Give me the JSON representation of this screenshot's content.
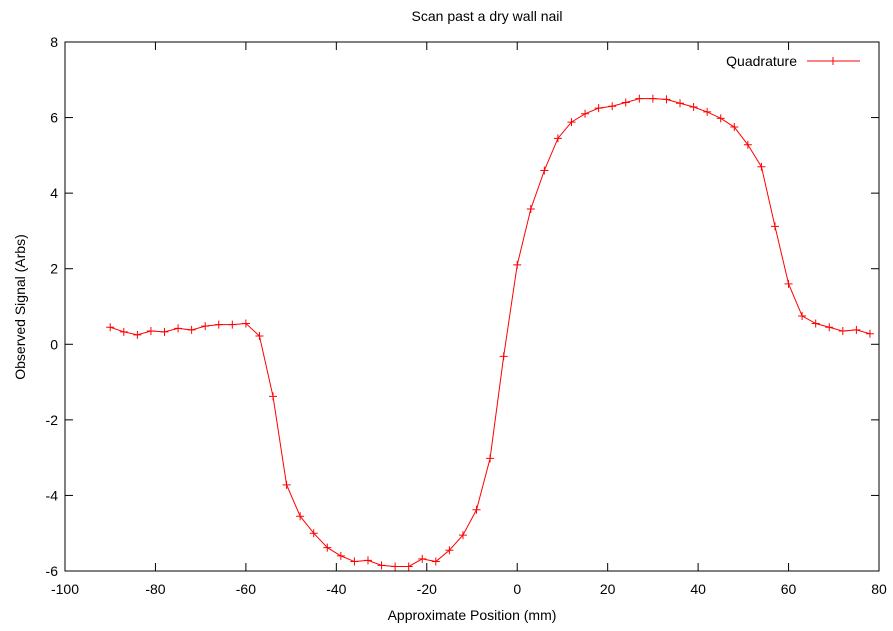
{
  "chart_data": {
    "type": "line",
    "title": "Scan past a dry wall nail",
    "xlabel": "Approximate Position (mm)",
    "ylabel": "Observed Signal (Arbs)",
    "xlim": [
      -100,
      80
    ],
    "ylim": [
      -6,
      8
    ],
    "x_ticks": [
      -100,
      -80,
      -60,
      -40,
      -20,
      0,
      20,
      40,
      60,
      80
    ],
    "y_ticks": [
      -6,
      -4,
      -2,
      0,
      2,
      4,
      6,
      8
    ],
    "x_tick_labels": [
      "-100",
      "-80",
      "-60",
      "-40",
      "-20",
      "0",
      "20",
      "40",
      "60",
      "80"
    ],
    "y_tick_labels": [
      "-6",
      "-4",
      "-2",
      "0",
      "2",
      "4",
      "6",
      "8"
    ],
    "grid": false,
    "legend_position": "top-right",
    "series": [
      {
        "name": "Quadrature",
        "color": "#ff0000",
        "marker": "plus",
        "x": [
          -90,
          -87,
          -84,
          -81,
          -78,
          -75,
          -72,
          -69,
          -66,
          -63,
          -60,
          -57,
          -54,
          -51,
          -48,
          -45,
          -42,
          -39,
          -36,
          -33,
          -30,
          -27,
          -24,
          -21,
          -18,
          -15,
          -12,
          -9,
          -6,
          -3,
          0,
          3,
          6,
          9,
          12,
          15,
          18,
          21,
          24,
          27,
          30,
          33,
          36,
          39,
          42,
          45,
          48,
          51,
          54,
          57,
          60,
          63,
          66,
          69,
          72,
          75,
          78
        ],
        "y": [
          0.45,
          0.33,
          0.25,
          0.35,
          0.33,
          0.42,
          0.38,
          0.48,
          0.52,
          0.52,
          0.55,
          0.22,
          -1.38,
          -3.72,
          -4.55,
          -5.0,
          -5.38,
          -5.6,
          -5.75,
          -5.72,
          -5.85,
          -5.88,
          -5.88,
          -5.68,
          -5.75,
          -5.45,
          -5.05,
          -4.38,
          -3.02,
          -0.32,
          2.1,
          3.58,
          4.6,
          5.45,
          5.88,
          6.1,
          6.25,
          6.3,
          6.4,
          6.5,
          6.5,
          6.48,
          6.38,
          6.28,
          6.15,
          5.98,
          5.75,
          5.28,
          4.7,
          3.12,
          1.6,
          0.75,
          0.55,
          0.45,
          0.35,
          0.38,
          0.28
        ]
      }
    ]
  }
}
